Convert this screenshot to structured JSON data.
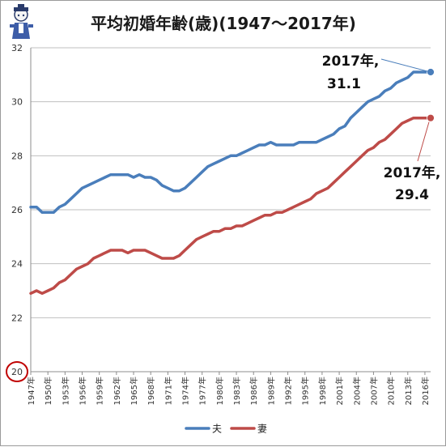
{
  "chart_data": {
    "type": "line",
    "title": "平均初婚年齢(歳)(1947～2017年)",
    "xlabel": "",
    "ylabel": "",
    "ylim": [
      20,
      32
    ],
    "yticks": [
      20,
      22,
      24,
      26,
      28,
      30,
      32
    ],
    "x": [
      1947,
      1948,
      1949,
      1950,
      1951,
      1952,
      1953,
      1954,
      1955,
      1956,
      1957,
      1958,
      1959,
      1960,
      1961,
      1962,
      1963,
      1964,
      1965,
      1966,
      1967,
      1968,
      1969,
      1970,
      1971,
      1972,
      1973,
      1974,
      1975,
      1976,
      1977,
      1978,
      1979,
      1980,
      1981,
      1982,
      1983,
      1984,
      1985,
      1986,
      1987,
      1988,
      1989,
      1990,
      1991,
      1992,
      1993,
      1994,
      1995,
      1996,
      1997,
      1998,
      1999,
      2000,
      2001,
      2002,
      2003,
      2004,
      2005,
      2006,
      2007,
      2008,
      2009,
      2010,
      2011,
      2012,
      2013,
      2014,
      2015,
      2016,
      2017
    ],
    "x_tick_labels": [
      "1947年",
      "1950年",
      "1953年",
      "1956年",
      "1959年",
      "1962年",
      "1965年",
      "1968年",
      "1971年",
      "1974年",
      "1977年",
      "1980年",
      "1983年",
      "1986年",
      "1989年",
      "1992年",
      "1995年",
      "1998年",
      "2001年",
      "2004年",
      "2007年",
      "2010年",
      "2013年",
      "2016年"
    ],
    "series": [
      {
        "name": "夫",
        "color": "#4a7ebb",
        "values": [
          26.1,
          26.1,
          25.9,
          25.9,
          25.9,
          26.1,
          26.2,
          26.4,
          26.6,
          26.8,
          26.9,
          27.0,
          27.1,
          27.2,
          27.3,
          27.3,
          27.3,
          27.3,
          27.2,
          27.3,
          27.2,
          27.2,
          27.1,
          26.9,
          26.8,
          26.7,
          26.7,
          26.8,
          27.0,
          27.2,
          27.4,
          27.6,
          27.7,
          27.8,
          27.9,
          28.0,
          28.0,
          28.1,
          28.2,
          28.3,
          28.4,
          28.4,
          28.5,
          28.4,
          28.4,
          28.4,
          28.4,
          28.5,
          28.5,
          28.5,
          28.5,
          28.6,
          28.7,
          28.8,
          29.0,
          29.1,
          29.4,
          29.6,
          29.8,
          30.0,
          30.1,
          30.2,
          30.4,
          30.5,
          30.7,
          30.8,
          30.9,
          31.1,
          31.1,
          31.1,
          31.1
        ]
      },
      {
        "name": "妻",
        "color": "#be4b48",
        "values": [
          22.9,
          23.0,
          22.9,
          23.0,
          23.1,
          23.3,
          23.4,
          23.6,
          23.8,
          23.9,
          24.0,
          24.2,
          24.3,
          24.4,
          24.5,
          24.5,
          24.5,
          24.4,
          24.5,
          24.5,
          24.5,
          24.4,
          24.3,
          24.2,
          24.2,
          24.2,
          24.3,
          24.5,
          24.7,
          24.9,
          25.0,
          25.1,
          25.2,
          25.2,
          25.3,
          25.3,
          25.4,
          25.4,
          25.5,
          25.6,
          25.7,
          25.8,
          25.8,
          25.9,
          25.9,
          26.0,
          26.1,
          26.2,
          26.3,
          26.4,
          26.6,
          26.7,
          26.8,
          27.0,
          27.2,
          27.4,
          27.6,
          27.8,
          28.0,
          28.2,
          28.3,
          28.5,
          28.6,
          28.8,
          29.0,
          29.2,
          29.3,
          29.4,
          29.4,
          29.4,
          29.4
        ]
      }
    ],
    "annotations": [
      {
        "line1": "2017年,",
        "line2": "31.1",
        "series": "夫"
      },
      {
        "line1": "2017年,",
        "line2": "29.4",
        "series": "妻"
      }
    ],
    "highlight_tick": 20,
    "highlight_color": "#c00000",
    "grid": true,
    "legend": "bottom-center"
  }
}
